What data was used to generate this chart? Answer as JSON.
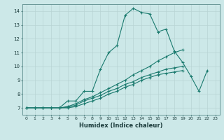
{
  "title": "",
  "xlabel": "Humidex (Indice chaleur)",
  "ylabel": "",
  "bg_color": "#cce8e8",
  "grid_color": "#b8d4d4",
  "line_color": "#1a7a6e",
  "ylim": [
    6.5,
    14.5
  ],
  "xlim": [
    -0.5,
    23.5
  ],
  "yticks": [
    7,
    8,
    9,
    10,
    11,
    12,
    13,
    14
  ],
  "xticks": [
    0,
    1,
    2,
    3,
    4,
    5,
    6,
    7,
    8,
    9,
    10,
    11,
    12,
    13,
    14,
    15,
    16,
    17,
    18,
    19,
    20,
    21,
    22,
    23
  ],
  "series": [
    {
      "x": [
        0,
        1,
        2,
        3,
        4,
        5,
        6,
        7,
        8,
        9,
        10,
        11,
        12,
        13,
        14,
        15,
        16,
        17,
        18,
        19,
        20,
        21,
        22
      ],
      "y": [
        7.0,
        7.0,
        7.0,
        7.0,
        7.0,
        7.5,
        7.5,
        8.2,
        8.2,
        9.8,
        11.0,
        11.5,
        13.7,
        14.2,
        13.9,
        13.8,
        12.5,
        12.7,
        11.1,
        10.3,
        9.3,
        8.2,
        9.7
      ]
    },
    {
      "x": [
        0,
        1,
        2,
        3,
        4,
        5,
        6,
        7,
        8,
        9,
        10,
        11,
        12,
        13,
        14,
        15,
        16,
        17,
        18,
        19,
        20,
        21,
        22
      ],
      "y": [
        7.0,
        7.0,
        7.0,
        7.0,
        7.0,
        7.1,
        7.3,
        7.6,
        7.8,
        8.1,
        8.4,
        8.7,
        9.0,
        9.4,
        9.7,
        10.0,
        10.4,
        10.7,
        11.0,
        11.2,
        null,
        null,
        null
      ]
    },
    {
      "x": [
        0,
        1,
        2,
        3,
        4,
        5,
        6,
        7,
        8,
        9,
        10,
        11,
        12,
        13,
        14,
        15,
        16,
        17,
        18,
        19,
        20,
        21,
        22
      ],
      "y": [
        7.0,
        7.0,
        7.0,
        7.0,
        7.0,
        7.05,
        7.2,
        7.5,
        7.7,
        7.9,
        8.2,
        8.4,
        8.7,
        8.9,
        9.2,
        9.4,
        9.6,
        9.8,
        9.9,
        10.0,
        null,
        null,
        null
      ]
    },
    {
      "x": [
        0,
        1,
        2,
        3,
        4,
        5,
        6,
        7,
        8,
        9,
        10,
        11,
        12,
        13,
        14,
        15,
        16,
        17,
        18,
        19,
        20,
        21,
        22
      ],
      "y": [
        7.0,
        7.0,
        7.0,
        7.0,
        7.0,
        7.0,
        7.1,
        7.3,
        7.5,
        7.7,
        8.0,
        8.2,
        8.5,
        8.7,
        9.0,
        9.2,
        9.4,
        9.5,
        9.6,
        9.7,
        null,
        null,
        null
      ]
    }
  ]
}
